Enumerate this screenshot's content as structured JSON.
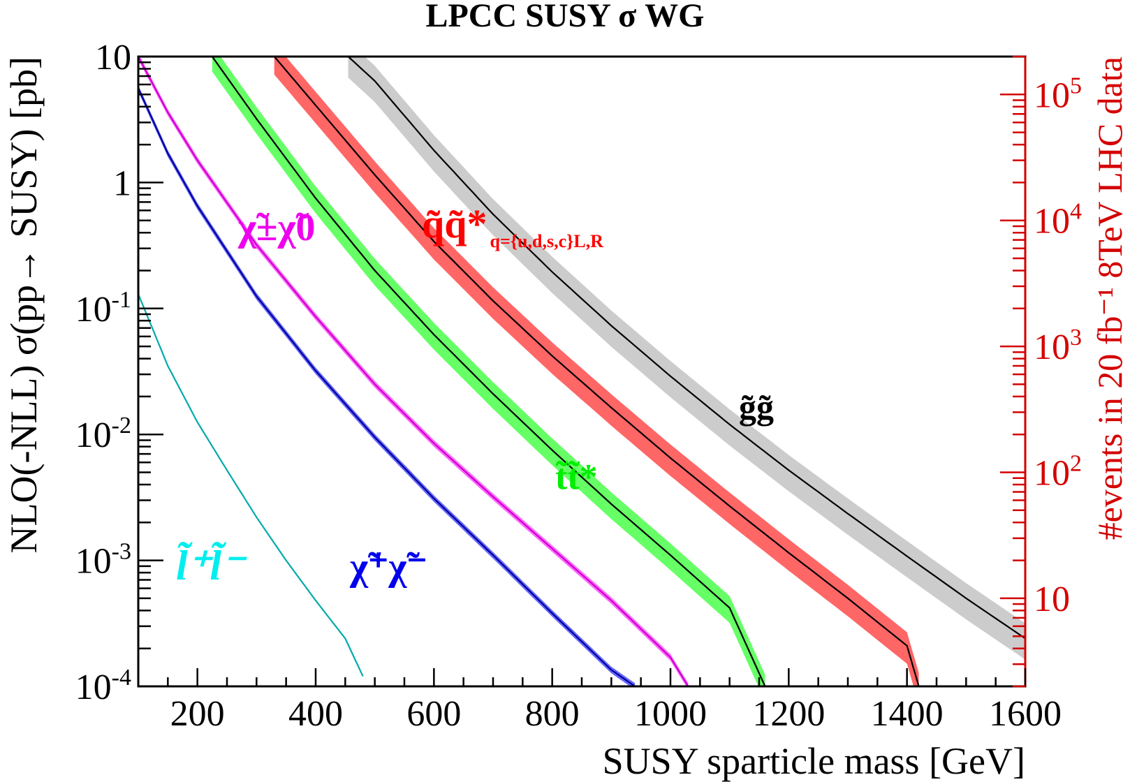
{
  "chart_data": {
    "type": "line",
    "title": "LPCC SUSY σ WG",
    "xlabel": "SUSY sparticle mass [GeV]",
    "ylabel": "NLO(-NLL) σ(pp→ SUSY) [pb]",
    "y2label": "#events in 20 fb⁻¹ 8TeV LHC data",
    "xlim": [
      100,
      1600
    ],
    "ylim": [
      0.0001,
      10
    ],
    "yscale": "log",
    "grid": false,
    "x_ticks": [
      "200",
      "400",
      "600",
      "800",
      "1000",
      "1200",
      "1400",
      "1600"
    ],
    "y_ticks": [
      {
        "base": "10",
        "exp": "-4"
      },
      {
        "base": "10",
        "exp": "-3"
      },
      {
        "base": "10",
        "exp": "-2"
      },
      {
        "base": "10",
        "exp": "-1"
      },
      {
        "base": "1",
        "exp": ""
      },
      {
        "base": "10",
        "exp": ""
      }
    ],
    "y2_ticks": [
      {
        "base": "10",
        "exp": ""
      },
      {
        "base": "10",
        "exp": "2"
      },
      {
        "base": "10",
        "exp": "3"
      },
      {
        "base": "10",
        "exp": "4"
      },
      {
        "base": "10",
        "exp": "5"
      }
    ],
    "series": [
      {
        "label_main": "g̃g̃",
        "label_sub": "",
        "color": "#000000",
        "band_color": "#cccccc",
        "band_frac": 0.32,
        "x": [
          455,
          500,
          600,
          700,
          800,
          900,
          1000,
          1100,
          1200,
          1300,
          1400,
          1500,
          1600
        ],
        "y": [
          10,
          6.4,
          1.8,
          0.56,
          0.195,
          0.073,
          0.029,
          0.012,
          0.0052,
          0.00235,
          0.00108,
          0.0005,
          0.00024
        ]
      },
      {
        "label_main": "q̃q̃*",
        "label_sub": "q={u,d,s,c}L,R",
        "color": "#000000",
        "band_color": "#ff6666",
        "band_frac": 0.28,
        "x": [
          330,
          400,
          500,
          600,
          700,
          800,
          900,
          1000,
          1100,
          1200,
          1300,
          1400,
          1420
        ],
        "y": [
          10,
          4.1,
          1.15,
          0.34,
          0.115,
          0.042,
          0.0163,
          0.0065,
          0.0027,
          0.00115,
          0.0005,
          0.00021,
          0.0001
        ]
      },
      {
        "label_main": "t̃t̃*",
        "label_sub": "",
        "color": "#000000",
        "band_color": "#66ff66",
        "band_frac": 0.24,
        "x": [
          225,
          300,
          400,
          500,
          600,
          700,
          800,
          900,
          1000,
          1100,
          1160
        ],
        "y": [
          10,
          3.2,
          0.75,
          0.2,
          0.062,
          0.021,
          0.0075,
          0.0028,
          0.0011,
          0.00042,
          0.0001
        ]
      },
      {
        "label_main": "χ̃±χ̃0",
        "label_sub": "",
        "color": "#cc00cc",
        "band_color": "#ff66ff",
        "band_frac": 0.06,
        "x": [
          100,
          150,
          200,
          300,
          400,
          500,
          600,
          700,
          800,
          900,
          1000,
          1030
        ],
        "y": [
          10,
          3.6,
          1.5,
          0.32,
          0.086,
          0.025,
          0.0085,
          0.0032,
          0.00124,
          0.00048,
          0.00017,
          0.0001
        ]
      },
      {
        "label_main": "χ̃⁺χ̃⁻",
        "label_sub": "",
        "color": "#000099",
        "band_color": "#6666ff",
        "band_frac": 0.06,
        "x": [
          100,
          150,
          200,
          300,
          400,
          500,
          600,
          700,
          800,
          900,
          940
        ],
        "y": [
          5.6,
          1.7,
          0.65,
          0.125,
          0.032,
          0.0095,
          0.0031,
          0.0011,
          0.00038,
          0.000135,
          0.0001
        ]
      },
      {
        "label_main": "l̃⁺l̃⁻",
        "label_sub": "",
        "color": "#00aaaa",
        "band_color": "#66ffff",
        "band_frac": 0.0,
        "x": [
          100,
          150,
          200,
          250,
          300,
          350,
          400,
          450,
          480
        ],
        "y": [
          0.13,
          0.035,
          0.0125,
          0.0052,
          0.0022,
          0.001,
          0.00048,
          0.00024,
          0.00012
        ]
      }
    ]
  }
}
